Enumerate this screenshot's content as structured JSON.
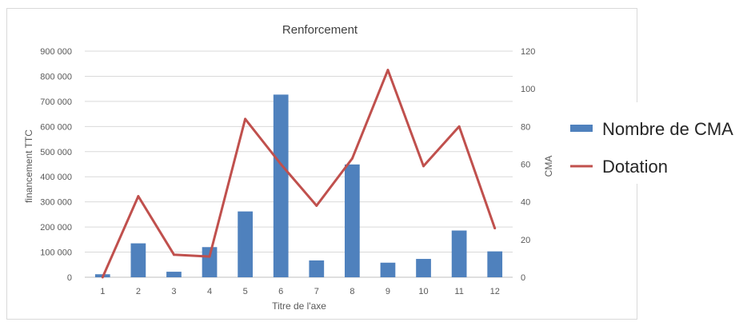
{
  "chart_data": {
    "type": "bar",
    "title": "Renforcement",
    "xlabel": "Titre de l'axe",
    "ylabel_left": "financement TTC",
    "ylabel_right": "CMA",
    "categories": [
      "1",
      "2",
      "3",
      "4",
      "5",
      "6",
      "7",
      "8",
      "9",
      "10",
      "11",
      "12"
    ],
    "ylim_left": [
      0,
      900000
    ],
    "ylim_right": [
      0,
      120
    ],
    "yticks_left": [
      "0",
      "100 000",
      "200 000",
      "300 000",
      "400 000",
      "500 000",
      "600 000",
      "700 000",
      "800 000",
      "900 000"
    ],
    "yticks_right": [
      "0",
      "20",
      "40",
      "60",
      "80",
      "100",
      "120"
    ],
    "grid": true,
    "legend_position": "right",
    "series": [
      {
        "name": "Nombre de CMA",
        "type": "bar",
        "axis": "left",
        "color": "#4f81bd",
        "values": [
          12000,
          135000,
          22000,
          120000,
          262000,
          727000,
          67000,
          449000,
          58000,
          73000,
          186000,
          103000
        ]
      },
      {
        "name": "Dotation",
        "type": "line",
        "axis": "right",
        "color": "#c0504d",
        "values": [
          0,
          43,
          12,
          11,
          84,
          60,
          38,
          63,
          110,
          59,
          80,
          26
        ]
      }
    ]
  }
}
